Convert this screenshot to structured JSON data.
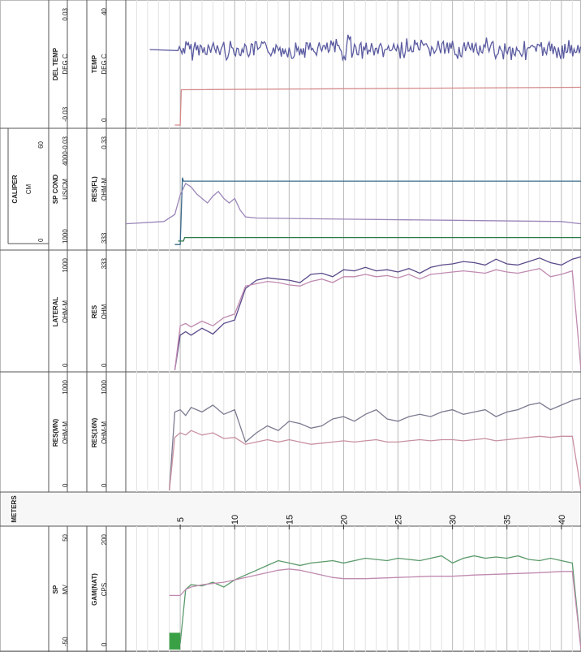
{
  "chart_data": {
    "type": "line",
    "orientation": "depth-horizontal well log (rotated)",
    "depth_axis": {
      "label": "METERS",
      "ticks": [
        5,
        10,
        15,
        20,
        25,
        30,
        35,
        40
      ],
      "range": [
        0,
        41.8
      ]
    },
    "tracks": [
      {
        "id": "track-temp",
        "headers": [
          {
            "name": "DEL TEMP",
            "unit": "DEG C",
            "scale": [
              "-0.03",
              "0.03"
            ]
          },
          {
            "name": "TEMP",
            "unit": "DEG C",
            "scale": [
              "0",
              "40"
            ]
          }
        ],
        "series": [
          {
            "name": "DEL TEMP",
            "color": "#5a5aa0",
            "start_depth": 2.2,
            "end_depth": 41.8,
            "baseline": 0.0
          },
          {
            "name": "TEMP",
            "color": "#d48a8a",
            "x": [
              4.5,
              5.0,
              5.1,
              41.8
            ],
            "y": [
              0.0,
              0.0,
              29,
              31
            ]
          }
        ]
      },
      {
        "id": "track-caliper",
        "headers": [
          {
            "name": "CALIPER",
            "unit": "CM",
            "scale": [
              "0",
              "60"
            ]
          },
          {
            "name": "SP COND",
            "unit": "US/CM",
            "scale": [
              "1000",
              "4000-0.03"
            ]
          },
          {
            "name": "RES(FL)",
            "unit": "OHM-M",
            "scale": [
              "333",
              "0.33"
            ]
          }
        ],
        "series": [
          {
            "name": "CALIPER",
            "color": "#3a6a8a",
            "x": [
              4.5,
              5.0,
              5.2,
              5.3,
              41.8
            ],
            "y": [
              2,
              2,
              60,
              57,
              57
            ]
          },
          {
            "name": "SP COND",
            "color": "#2e7a4a",
            "x": [
              4.8,
              5.3,
              5.4,
              41.8
            ],
            "y": [
              5,
              5,
              8,
              8
            ]
          },
          {
            "name": "RES(FL)",
            "color": "#9a86b8",
            "x": [
              0,
              3.5,
              4.5,
              5.0,
              5.5,
              6.0,
              6.5,
              7.0,
              7.5,
              8.0,
              8.5,
              9.0,
              9.5,
              10.0,
              10.5,
              11.0,
              12.0,
              20,
              30,
              40,
              41.8
            ],
            "y": [
              20,
              22,
              28,
              45,
              55,
              52,
              46,
              42,
              38,
              44,
              48,
              42,
              38,
              42,
              32,
              26,
              25,
              24,
              23,
              22,
              20
            ]
          }
        ]
      },
      {
        "id": "track-lateral",
        "headers": [
          {
            "name": "LATERAL",
            "unit": "OHM-M",
            "scale": [
              "0",
              "1000"
            ]
          },
          {
            "name": "RES",
            "unit": "OHM",
            "scale": [
              "0",
              "333"
            ]
          }
        ],
        "series": [
          {
            "name": "LATERAL",
            "color": "#5a4a8a",
            "x": [
              4.5,
              5.0,
              5.5,
              6,
              7,
              8,
              9,
              10,
              11,
              12,
              13,
              14,
              15,
              16,
              17,
              18,
              19,
              20,
              21,
              22,
              23,
              24,
              25,
              26,
              27,
              28,
              29,
              30,
              31,
              32,
              33,
              34,
              35,
              36,
              37,
              38,
              39,
              40,
              41,
              41.8
            ],
            "y": [
              0,
              30,
              33,
              30,
              36,
              31,
              40,
              43,
              70,
              77,
              79,
              78,
              77,
              75,
              82,
              83,
              80,
              86,
              85,
              88,
              85,
              86,
              84,
              87,
              83,
              88,
              90,
              91,
              93,
              92,
              90,
              95,
              91,
              90,
              93,
              96,
              92,
              90,
              95,
              97
            ]
          },
          {
            "name": "RES",
            "color": "#c08ab0",
            "x": [
              4.5,
              5.0,
              5.5,
              6,
              7,
              8,
              9,
              10,
              11,
              12,
              13,
              14,
              15,
              16,
              17,
              18,
              19,
              20,
              21,
              22,
              23,
              24,
              25,
              26,
              27,
              28,
              29,
              30,
              31,
              32,
              33,
              34,
              35,
              36,
              37,
              38,
              39,
              40,
              41,
              41.8
            ],
            "y": [
              0,
              38,
              40,
              37,
              42,
              38,
              45,
              48,
              72,
              74,
              76,
              75,
              73,
              72,
              76,
              78,
              75,
              80,
              80,
              82,
              80,
              81,
              79,
              82,
              78,
              82,
              83,
              84,
              85,
              84,
              83,
              86,
              84,
              83,
              85,
              87,
              80,
              82,
              85,
              0
            ]
          }
        ]
      },
      {
        "id": "track-res",
        "headers": [
          {
            "name": "RES(MN)",
            "unit": "OHM-M",
            "scale": [
              "0",
              "1000"
            ]
          },
          {
            "name": "RES(16N)",
            "unit": "OHM-M",
            "scale": [
              "0",
              "1000"
            ]
          }
        ],
        "series": [
          {
            "name": "RES(MN)",
            "color": "#7a7a90",
            "x": [
              4.0,
              4.5,
              5.0,
              5.5,
              6,
              7,
              8,
              9,
              10,
              11,
              12,
              13,
              14,
              15,
              16,
              17,
              18,
              19,
              20,
              21,
              22,
              23,
              24,
              25,
              26,
              27,
              28,
              29,
              30,
              31,
              32,
              33,
              34,
              35,
              36,
              37,
              38,
              39,
              40,
              41,
              41.8
            ],
            "y": [
              0,
              68,
              70,
              65,
              72,
              68,
              74,
              66,
              70,
              42,
              50,
              56,
              52,
              60,
              58,
              54,
              56,
              62,
              64,
              60,
              66,
              70,
              62,
              60,
              64,
              66,
              64,
              68,
              70,
              66,
              68,
              70,
              64,
              68,
              70,
              74,
              76,
              70,
              74,
              78,
              80
            ]
          },
          {
            "name": "RES(16N)",
            "color": "#c890a0",
            "x": [
              4.0,
              4.5,
              5.0,
              5.5,
              6,
              7,
              8,
              9,
              10,
              11,
              12,
              13,
              14,
              15,
              16,
              17,
              18,
              19,
              20,
              21,
              22,
              23,
              24,
              25,
              26,
              27,
              28,
              29,
              30,
              31,
              32,
              33,
              34,
              35,
              36,
              37,
              38,
              39,
              40,
              41,
              41.8
            ],
            "y": [
              0,
              46,
              50,
              48,
              52,
              48,
              50,
              45,
              46,
              40,
              42,
              44,
              42,
              44,
              42,
              40,
              41,
              42,
              43,
              42,
              43,
              44,
              42,
              42,
              43,
              44,
              43,
              44,
              44,
              43,
              44,
              45,
              43,
              44,
              45,
              46,
              47,
              46,
              47,
              47,
              0
            ]
          }
        ]
      },
      {
        "id": "track-sp-gamma",
        "headers": [
          {
            "name": "SP",
            "unit": "MV",
            "scale": [
              "-50",
              "50"
            ]
          },
          {
            "name": "GAM(NAT)",
            "unit": "CPS",
            "scale": [
              "0",
              "200"
            ]
          }
        ],
        "series": [
          {
            "name": "SP",
            "color": "#5a9a6a",
            "x": [
              5.0,
              5.5,
              6,
              7,
              8,
              9,
              10,
              11,
              12,
              13,
              14,
              15,
              16,
              17,
              18,
              19,
              20,
              21,
              22,
              23,
              24,
              25,
              26,
              27,
              28,
              29,
              30,
              31,
              32,
              33,
              34,
              35,
              36,
              37,
              38,
              39,
              40,
              41,
              41.8
            ],
            "y": [
              5,
              50,
              54,
              53,
              56,
              52,
              58,
              62,
              66,
              70,
              74,
              72,
              70,
              72,
              73,
              74,
              72,
              74,
              76,
              75,
              74,
              76,
              75,
              74,
              76,
              78,
              72,
              76,
              78,
              76,
              77,
              76,
              78,
              75,
              74,
              76,
              74,
              72,
              0
            ]
          },
          {
            "name": "GAM(NAT)",
            "color": "#c08ab0",
            "x": [
              4.0,
              5.0,
              5.5,
              6,
              7,
              8,
              9,
              10,
              11,
              12,
              13,
              14,
              15,
              16,
              17,
              18,
              19,
              20,
              22,
              25,
              28,
              30,
              32,
              35,
              38,
              40,
              41,
              41.8
            ],
            "y": [
              45,
              45,
              50,
              52,
              54,
              55,
              56,
              58,
              60,
              62,
              64,
              66,
              67,
              66,
              64,
              62,
              60,
              59,
              59,
              60,
              61,
              61,
              62,
              63,
              64,
              65,
              65,
              0
            ]
          }
        ],
        "fill": {
          "color": "#3aa046",
          "x": [
            4.0,
            5.0
          ],
          "y_from": 0,
          "y_to": 14
        }
      }
    ],
    "grid": true
  }
}
